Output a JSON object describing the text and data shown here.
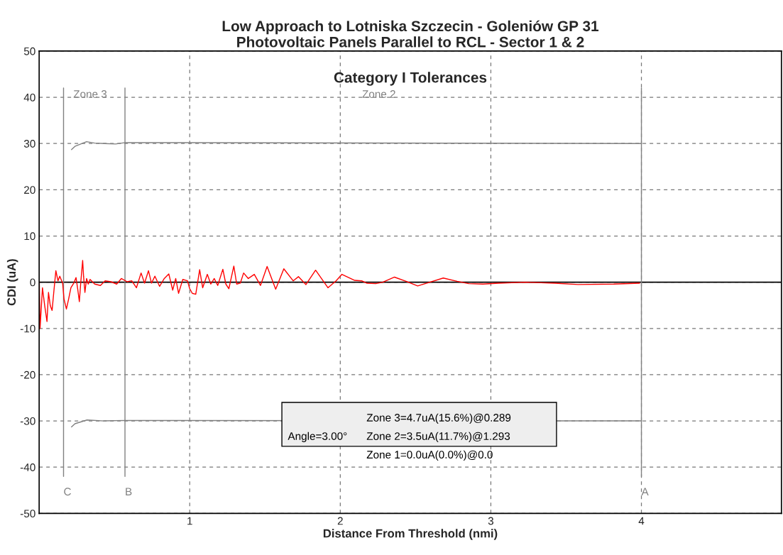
{
  "chart_data": {
    "type": "line",
    "title": "Low Approach to Lotniska Szczecin - Goleniów GP 31\nPhotovoltaic Panels Parallel to RCL - Sector 1 & 2",
    "subtitle": "Category I Tolerances",
    "xlabel": "Distance From Threshold (nmi)",
    "ylabel": "CDI (uA)",
    "xlim": [
      0,
      4.93
    ],
    "ylim": [
      -50,
      50
    ],
    "xticks": [
      1,
      2,
      3,
      4
    ],
    "yticks": [
      -50,
      -40,
      -30,
      -20,
      -10,
      0,
      10,
      20,
      30,
      40,
      50
    ],
    "grid": true,
    "line_style": "solid",
    "marker": "none",
    "series": [
      {
        "color": "#ff0000",
        "x": [
          0.001,
          0.006,
          0.022,
          0.037,
          0.052,
          0.062,
          0.074,
          0.086,
          0.097,
          0.111,
          0.125,
          0.137,
          0.156,
          0.165,
          0.181,
          0.196,
          0.211,
          0.23,
          0.245,
          0.257,
          0.267,
          0.276,
          0.289,
          0.295,
          0.304,
          0.315,
          0.326,
          0.338,
          0.369,
          0.407,
          0.438,
          0.477,
          0.515,
          0.546,
          0.584,
          0.615,
          0.646,
          0.677,
          0.7,
          0.726,
          0.746,
          0.769,
          0.8,
          0.831,
          0.861,
          0.887,
          0.907,
          0.926,
          0.954,
          0.985,
          1.0,
          1.017,
          1.04,
          1.066,
          1.086,
          1.117,
          1.14,
          1.163,
          1.186,
          1.22,
          1.24,
          1.26,
          1.293,
          1.312,
          1.336,
          1.358,
          1.389,
          1.429,
          1.47,
          1.514,
          1.571,
          1.625,
          1.687,
          1.722,
          1.772,
          1.836,
          1.918,
          1.972,
          2.011,
          2.096,
          2.142,
          2.175,
          2.236,
          2.282,
          2.36,
          2.437,
          2.514,
          2.583,
          2.684,
          2.776,
          2.853,
          2.946,
          3.054,
          3.224,
          3.424,
          3.579,
          3.816,
          3.988
        ],
        "values": [
          0.3,
          -10,
          -1.2,
          -5.1,
          -8.5,
          -2.2,
          -5.1,
          -6.1,
          -2.2,
          2.5,
          0.3,
          1.3,
          -0.2,
          -3.6,
          -5.8,
          -3.6,
          -1.2,
          -0.2,
          1.0,
          -1.7,
          -4.2,
          -0.2,
          4.7,
          1.3,
          -2.2,
          0.8,
          -0.4,
          0.6,
          -0.4,
          -0.7,
          0.3,
          0.1,
          -0.4,
          0.8,
          0.1,
          0.3,
          -1.2,
          2.0,
          -0.2,
          2.5,
          -0.2,
          1.3,
          -0.9,
          0.8,
          1.8,
          -1.7,
          0.8,
          -2.4,
          0.6,
          0.3,
          -1.4,
          -2.4,
          -2.6,
          2.7,
          -1.2,
          1.7,
          -0.4,
          0.8,
          -0.7,
          2.8,
          -0.4,
          -1.4,
          3.5,
          -0.4,
          -0.2,
          2.0,
          0.8,
          1.7,
          -0.7,
          3.4,
          -1.5,
          2.9,
          0.3,
          1.2,
          -0.5,
          2.6,
          -1.2,
          0.3,
          1.7,
          0.4,
          0.3,
          -0.2,
          -0.3,
          0,
          1.1,
          0.2,
          -0.8,
          -0.1,
          0.9,
          0.2,
          -0.3,
          -0.4,
          -0.2,
          0,
          -0.2,
          -0.5,
          -0.4,
          -0.2
        ]
      },
      {
        "color": "#808080",
        "x": [
          0.215,
          0.238,
          0.315,
          0.369,
          0.431,
          0.508,
          0.573,
          4.0
        ],
        "values": [
          28.7,
          29.4,
          30.4,
          30.1,
          30.0,
          29.9,
          30.2,
          30
        ]
      },
      {
        "color": "#808080",
        "x": [
          0.215,
          0.238,
          0.318,
          0.431,
          0.573,
          4.0
        ],
        "values": [
          -31.3,
          -30.6,
          -29.8,
          -30.0,
          -29.9,
          -30
        ]
      }
    ],
    "ref_lines": [
      {
        "axis": "y",
        "value": 0,
        "color": "#000000",
        "line_style": "solid"
      },
      {
        "axis": "x",
        "value": 0.162,
        "label": "C",
        "color": "#808080",
        "line_style": "solid"
      },
      {
        "axis": "x",
        "value": 0.57,
        "label": "B",
        "color": "#808080",
        "line_style": "solid"
      },
      {
        "axis": "x",
        "value": 4.0,
        "label": "A",
        "color": "#808080",
        "line_style": "solid"
      }
    ],
    "annotations": [
      "Zone 3",
      "Zone 2",
      "Angle=3.00°",
      "Zone 3=4.7uA(15.6%)@0.289",
      "Zone 2=3.5uA(11.7%)@1.293",
      "Zone 1=0.0uA(0.0%)@0.0"
    ]
  }
}
